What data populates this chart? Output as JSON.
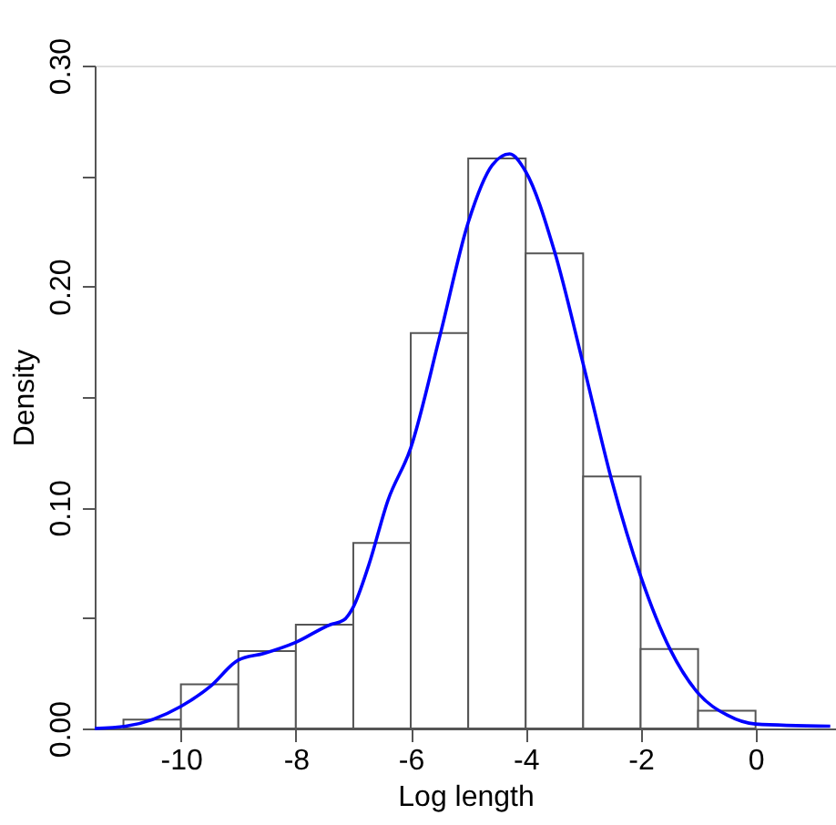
{
  "chart_data": {
    "type": "histogram",
    "xlabel": "Log length",
    "ylabel": "Density",
    "bins": [
      -11,
      -10,
      -9,
      -8,
      -7,
      -6,
      -5,
      -4,
      -3,
      -2,
      -1,
      0
    ],
    "values": [
      0.004,
      0.02,
      0.035,
      0.047,
      0.084,
      0.179,
      0.258,
      0.215,
      0.114,
      0.036,
      0.008
    ],
    "color": "#ffffff",
    "series": [
      {
        "type": "line",
        "color": "#0000ff",
        "x": [
          -11.5,
          -10.96,
          -10,
          -9.49,
          -9,
          -8.55,
          -8,
          -7.4,
          -7.17,
          -7,
          -6.73,
          -6.4,
          -6,
          -5.49,
          -5,
          -4.58,
          -4.28,
          -4,
          -3.5,
          -3,
          -2.5,
          -2,
          -1.49,
          -1,
          -0.49,
          0,
          1.3
        ],
        "values": [
          0,
          0.001,
          0.01,
          0.019,
          0.031,
          0.034,
          0.039,
          0.047,
          0.049,
          0.055,
          0.074,
          0.103,
          0.127,
          0.178,
          0.229,
          0.255,
          0.26,
          0.252,
          0.216,
          0.165,
          0.112,
          0.069,
          0.036,
          0.016,
          0.006,
          0.002,
          0.001
        ]
      }
    ],
    "xlim": [
      -11.5,
      1.4
    ],
    "xticks": [
      -10,
      -8,
      -6,
      -4,
      -2,
      0
    ],
    "ylim": [
      0,
      0.3
    ],
    "yticks": [
      {
        "value": 0,
        "label": "0.00"
      },
      {
        "value": 0.05,
        "label": null
      },
      {
        "value": 0.1,
        "label": "0.10"
      },
      {
        "value": 0.15,
        "label": null
      },
      {
        "value": 0.2,
        "label": "0.20"
      },
      {
        "value": 0.25,
        "label": null
      },
      {
        "value": 0.3,
        "label": "0.30"
      }
    ],
    "grid": false
  }
}
